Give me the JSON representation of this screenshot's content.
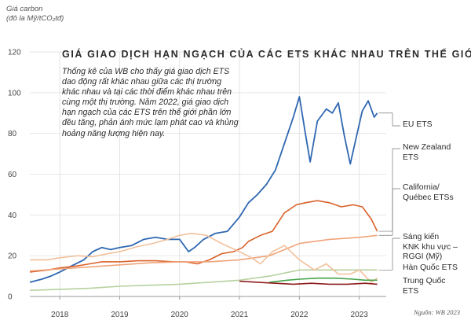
{
  "chart_data": {
    "type": "line",
    "title": "GIÁ GIAO DỊCH HẠN NGẠCH CỦA CÁC ETS KHÁC NHAU TRÊN THẾ GIỚI",
    "ylabel_line1": "Giá carbon",
    "ylabel_line2": "(đô la Mỹ/tCO₂tđ)",
    "xlabel": "",
    "ylim": [
      0,
      120
    ],
    "yticks": [
      "0",
      "20",
      "40",
      "60",
      "80",
      "100",
      "120"
    ],
    "xlim": [
      2017.5,
      2023.45
    ],
    "xticks": [
      {
        "label": "2018",
        "value": 2018
      },
      {
        "label": "2019",
        "value": 2019
      },
      {
        "label": "2020",
        "value": 2020
      },
      {
        "label": "2021",
        "value": 2021
      },
      {
        "label": "2022",
        "value": 2022
      },
      {
        "label": "2023",
        "value": 2023
      }
    ],
    "grid": true,
    "intro_text": "Thống kê của WB cho thấy giá giao dịch ETS dao động rất khác nhau giữa các thị trường khác nhau và tại các thời điểm khác nhau trên cùng một thị trường. Năm 2022, giá giao dịch hạn ngạch của các ETS trên thế giới phần lớn đều tăng, phản ánh mức lạm phát cao và khủng hoảng năng lượng hiện nay.",
    "source": "Nguồn: WB 2023",
    "series": [
      {
        "name": "EU ETS",
        "color": "#2f67b1",
        "x": [
          2017.5,
          2017.7,
          2017.85,
          2018.0,
          2018.2,
          2018.4,
          2018.55,
          2018.7,
          2018.85,
          2019.0,
          2019.2,
          2019.4,
          2019.6,
          2019.8,
          2020.0,
          2020.15,
          2020.25,
          2020.4,
          2020.6,
          2020.8,
          2021.0,
          2021.15,
          2021.3,
          2021.45,
          2021.6,
          2021.75,
          2021.9,
          2022.0,
          2022.1,
          2022.18,
          2022.3,
          2022.45,
          2022.55,
          2022.65,
          2022.75,
          2022.85,
          2022.95,
          2023.05,
          2023.15,
          2023.25,
          2023.3
        ],
        "values": [
          7,
          8.5,
          10,
          12,
          15,
          18,
          22,
          24,
          23,
          24,
          25,
          28,
          29,
          28,
          28,
          22,
          24,
          28,
          31,
          32,
          39,
          46,
          50,
          55,
          62,
          75,
          88,
          98,
          80,
          66,
          86,
          92,
          90,
          95,
          79,
          65,
          78,
          91,
          96,
          88,
          90
        ]
      },
      {
        "name": "New Zealand\nETS",
        "color": "#d9622b",
        "x": [
          2017.5,
          2017.8,
          2018.0,
          2018.3,
          2018.5,
          2018.7,
          2019.0,
          2019.3,
          2019.6,
          2019.9,
          2020.1,
          2020.3,
          2020.5,
          2020.7,
          2020.9,
          2021.05,
          2021.15,
          2021.35,
          2021.55,
          2021.75,
          2021.95,
          2022.1,
          2022.3,
          2022.5,
          2022.7,
          2022.9,
          2023.05,
          2023.2,
          2023.3
        ],
        "values": [
          12,
          13,
          14,
          15,
          16,
          17,
          17,
          17.5,
          17.5,
          17,
          17,
          16,
          18,
          21,
          22,
          24,
          27,
          30,
          32,
          41,
          45,
          46,
          47,
          46,
          44,
          45,
          44,
          38,
          32
        ]
      },
      {
        "name": "California/\nQuébec ETSs",
        "color": "#f0a47a",
        "x": [
          2017.5,
          2018.0,
          2018.5,
          2019.0,
          2019.5,
          2020.0,
          2020.5,
          2021.0,
          2021.5,
          2022.0,
          2022.5,
          2023.0,
          2023.3
        ],
        "values": [
          12.5,
          13.5,
          14.5,
          15.5,
          16.5,
          17,
          17,
          18,
          20,
          26,
          28,
          29,
          30
        ]
      },
      {
        "name": "Sáng kiến\nKNK khu vực –\nRGGI (Mỹ)",
        "color": "#b7d19f",
        "x": [
          2017.5,
          2018.0,
          2018.5,
          2019.0,
          2019.5,
          2020.0,
          2020.5,
          2021.0,
          2021.5,
          2022.0,
          2022.5,
          2023.0,
          2023.3
        ],
        "values": [
          3,
          3.5,
          4,
          5,
          5.5,
          6,
          7,
          8,
          10,
          13,
          13,
          13,
          13
        ]
      },
      {
        "name": "Hàn Quốc ETS",
        "color": "#f2c09b",
        "x": [
          2017.5,
          2017.8,
          2018.0,
          2018.3,
          2018.55,
          2018.8,
          2019.0,
          2019.3,
          2019.55,
          2019.8,
          2020.0,
          2020.2,
          2020.45,
          2020.7,
          2021.0,
          2021.2,
          2021.35,
          2021.55,
          2021.75,
          2022.0,
          2022.25,
          2022.45,
          2022.65,
          2022.85,
          2023.0,
          2023.2,
          2023.3
        ],
        "values": [
          18,
          18,
          19,
          20,
          19.5,
          21,
          22,
          24.5,
          26,
          28,
          30,
          31,
          30,
          26,
          22,
          19,
          16,
          22,
          25,
          18,
          13,
          16,
          11,
          11,
          13,
          7,
          9
        ]
      },
      {
        "name": "Trung Quốc\nETS",
        "color": "#43a248",
        "x": [
          2021.5,
          2021.8,
          2022.0,
          2022.3,
          2022.6,
          2022.9,
          2023.1,
          2023.3
        ],
        "values": [
          7,
          8,
          8.5,
          9,
          9,
          8.5,
          8,
          8
        ]
      },
      {
        "name": "",
        "color": "#8e1c1c",
        "x": [
          2021.0,
          2021.3,
          2021.6,
          2021.9,
          2022.2,
          2022.5,
          2022.8,
          2023.1,
          2023.3
        ],
        "values": [
          7.5,
          7,
          6.5,
          6,
          6.5,
          6,
          6,
          6.5,
          6
        ]
      }
    ]
  }
}
